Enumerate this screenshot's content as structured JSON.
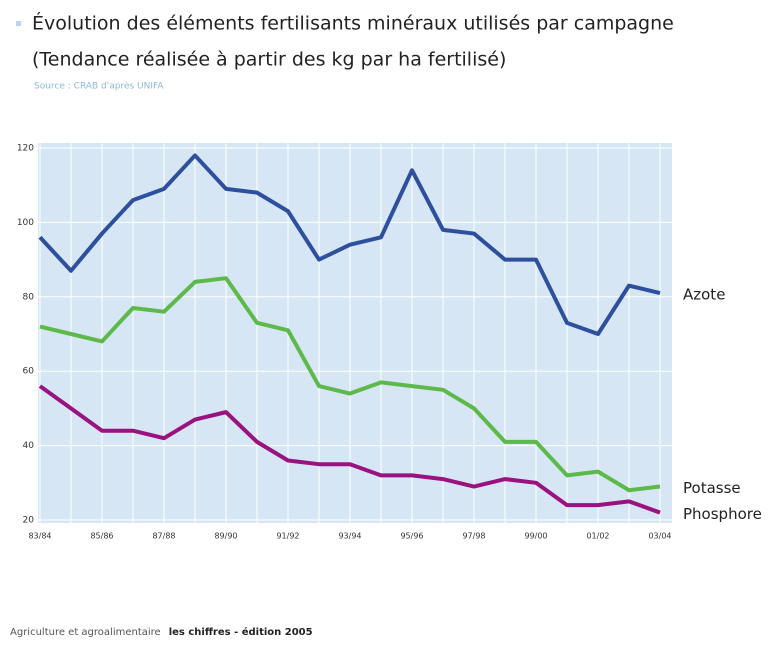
{
  "chart_data": {
    "type": "line",
    "title": "Évolution des éléments fertilisants minéraux utilisés par campagne",
    "subtitle": "(Tendance réalisée à partir des kg par ha fertilisé)",
    "source": "Source : CRAB d'après UNIFA",
    "categories": [
      "83/84",
      null,
      "85/86",
      null,
      "87/88",
      null,
      "89/90",
      null,
      "91/92",
      null,
      "93/94",
      null,
      "95/96",
      null,
      "97/98",
      null,
      "99/00",
      null,
      "01/02",
      null,
      "03/04"
    ],
    "series": [
      {
        "name": "Azote",
        "color": "#2d4f9e",
        "values": [
          96,
          87,
          97,
          106,
          109,
          118,
          109,
          108,
          103,
          90,
          94,
          96,
          114,
          98,
          97,
          90,
          90,
          73,
          70,
          83,
          81
        ]
      },
      {
        "name": "Potasse",
        "color": "#5cb94a",
        "values": [
          72,
          70,
          68,
          77,
          76,
          84,
          85,
          73,
          71,
          56,
          54,
          57,
          56,
          55,
          50,
          41,
          41,
          32,
          33,
          28,
          29
        ]
      },
      {
        "name": "Phosphore",
        "color": "#99127f",
        "values": [
          56,
          50,
          44,
          44,
          42,
          47,
          49,
          41,
          36,
          35,
          35,
          32,
          32,
          31,
          29,
          31,
          30,
          24,
          24,
          25,
          22
        ]
      }
    ],
    "ylim": [
      20,
      120
    ],
    "yticks": [
      20,
      40,
      60,
      80,
      100,
      120
    ],
    "grid": true
  },
  "footer": {
    "text": "Agriculture et agroalimentaire",
    "bold": "les chiffres - édition 2005"
  }
}
